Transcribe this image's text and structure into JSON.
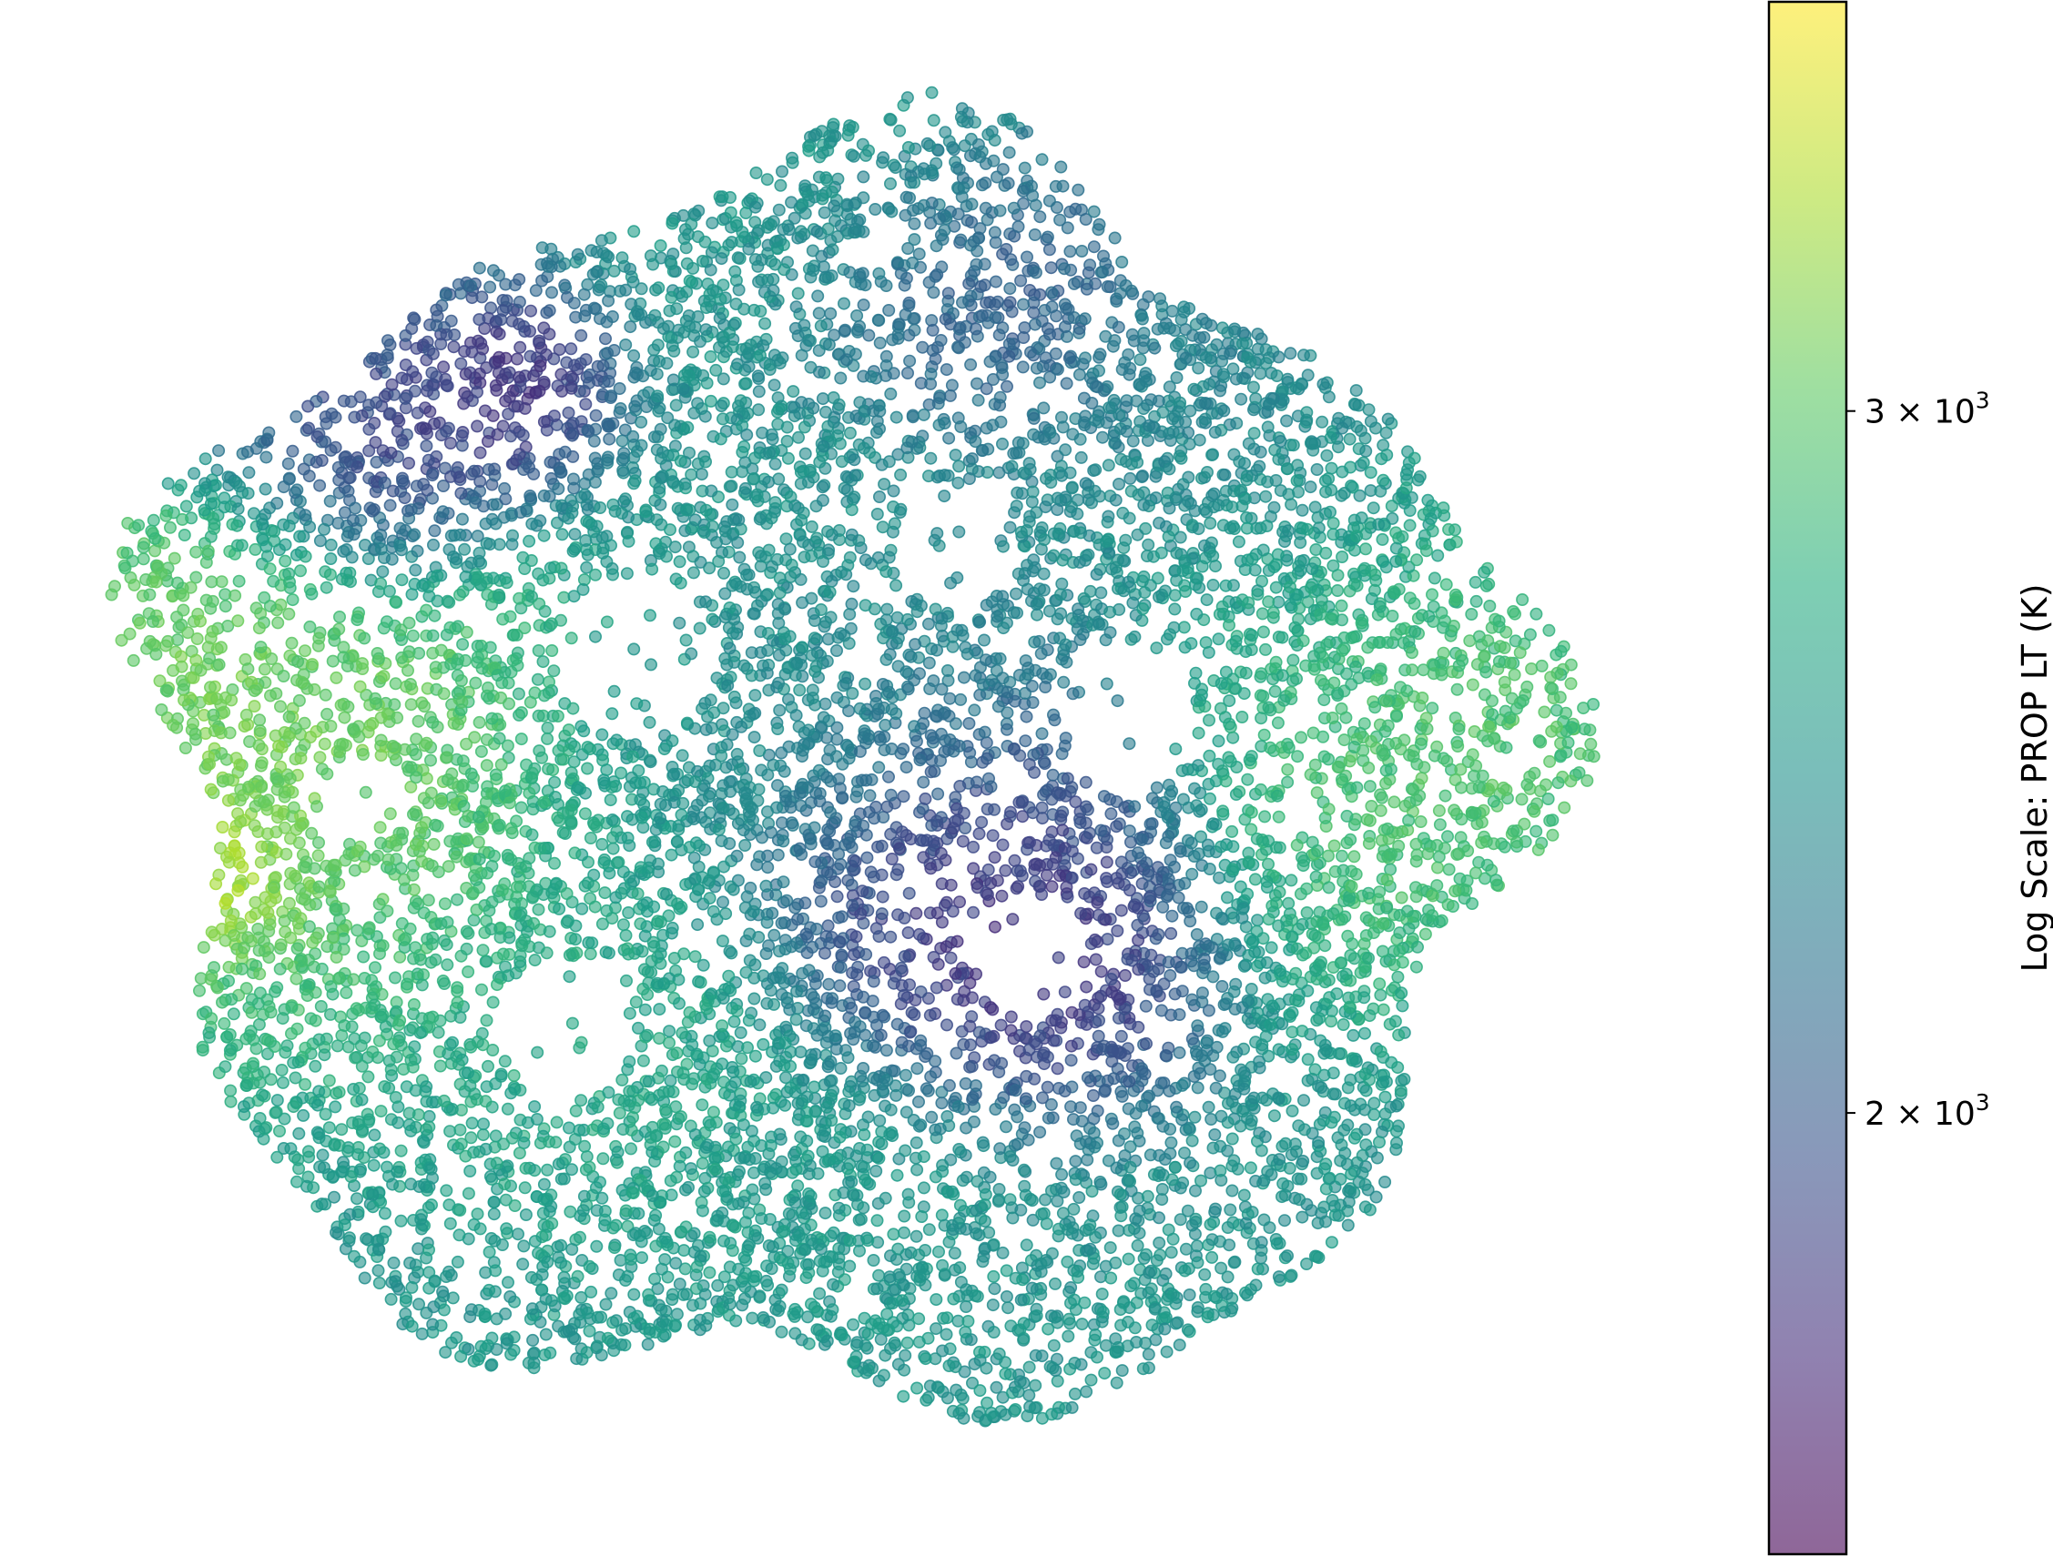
{
  "chart_data": {
    "type": "scatter",
    "title": "",
    "xlabel": "",
    "ylabel": "",
    "axes_visible": false,
    "grid": false,
    "marker": {
      "shape": "circle",
      "alpha": 0.6
    },
    "colorbar": {
      "label": "Log Scale: PROP LT (K)",
      "scale": "log",
      "colormap": "viridis",
      "range": [
        1550,
        3800
      ],
      "ticks": [
        {
          "value": 2000,
          "mantissa": "2",
          "times": "×",
          "base": "10",
          "exponent": "3"
        },
        {
          "value": 3000,
          "mantissa": "3",
          "times": "×",
          "base": "10",
          "exponent": "3"
        }
      ]
    },
    "regions": [
      {
        "name": "",
        "center": [
          228,
          955
        ],
        "value": 3750,
        "spread": 30
      },
      {
        "name": "",
        "center": [
          300,
          810
        ],
        "value": 3300,
        "spread": 110
      },
      {
        "name": "",
        "center": [
          150,
          700
        ],
        "value": 3100,
        "spread": 80
      },
      {
        "name": "",
        "center": [
          410,
          510
        ],
        "value": 1650,
        "spread": 50
      },
      {
        "name": "",
        "center": [
          290,
          400
        ],
        "value": 1900,
        "spread": 70
      },
      {
        "name": "",
        "center": [
          560,
          430
        ],
        "value": 1650,
        "spread": 40
      },
      {
        "name": "",
        "center": [
          1010,
          1000
        ],
        "value": 1600,
        "spread": 60
      },
      {
        "name": "",
        "center": [
          1150,
          1030
        ],
        "value": 1650,
        "spread": 60
      },
      {
        "name": "",
        "center": [
          1100,
          940
        ],
        "value": 1900,
        "spread": 80
      },
      {
        "name": "",
        "center": [
          950,
          130
        ],
        "value": 2500,
        "spread": 80
      },
      {
        "name": "",
        "center": [
          1080,
          300
        ],
        "value": 1900,
        "spread": 60
      },
      {
        "name": "",
        "center": [
          1500,
          860
        ],
        "value": 3000,
        "spread": 80
      },
      {
        "name": "",
        "center": [
          1640,
          790
        ],
        "value": 3100,
        "spread": 70
      },
      {
        "name": "",
        "center": [
          880,
          810
        ],
        "value": 2400,
        "spread": 90
      },
      {
        "name": "",
        "center": [
          1500,
          600
        ],
        "value": 2700,
        "spread": 90
      },
      {
        "name": "",
        "center": [
          700,
          1150
        ],
        "value": 2700,
        "spread": 80
      },
      {
        "name": "",
        "center": [
          880,
          1320
        ],
        "value": 2500,
        "spread": 80
      },
      {
        "name": "",
        "center": [
          1400,
          470
        ],
        "value": 2200,
        "spread": 80
      }
    ]
  }
}
